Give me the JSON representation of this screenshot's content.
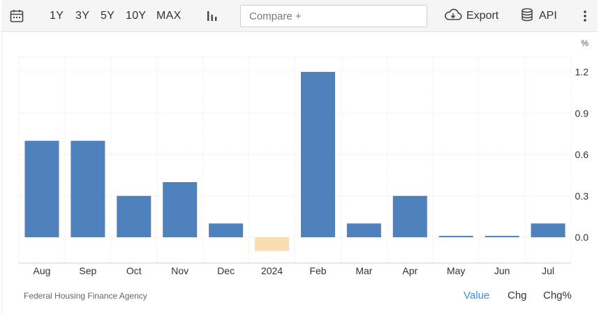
{
  "toolbar": {
    "ranges": [
      "1Y",
      "3Y",
      "5Y",
      "10Y",
      "MAX"
    ],
    "compare_placeholder": "Compare +",
    "export_label": "Export",
    "api_label": "API",
    "icons": [
      "calendar-icon",
      "bar-chart-icon",
      "cloud-download-icon",
      "database-icon",
      "more-vertical-icon"
    ]
  },
  "chart_data": {
    "type": "bar",
    "ylabel": "%",
    "categories": [
      "Aug",
      "Sep",
      "Oct",
      "Nov",
      "Dec",
      "2024",
      "Feb",
      "Mar",
      "Apr",
      "May",
      "Jun",
      "Jul"
    ],
    "values": [
      0.7,
      0.7,
      0.3,
      0.4,
      0.1,
      -0.1,
      1.2,
      0.1,
      0.3,
      0.01,
      0.01,
      0.1
    ],
    "yticks": [
      "1.2",
      "0.9",
      "0.6",
      "0.3",
      "0.0"
    ],
    "ylim": [
      -0.2,
      1.3
    ],
    "grid": true,
    "colors": {
      "positive": "#4f81bd",
      "negative": "#f9deb2"
    }
  },
  "footer": {
    "source": "Federal Housing Finance Agency",
    "tabs": [
      "Value",
      "Chg",
      "Chg%"
    ],
    "active_tab": "Value",
    "active_color": "#3a8dde"
  }
}
